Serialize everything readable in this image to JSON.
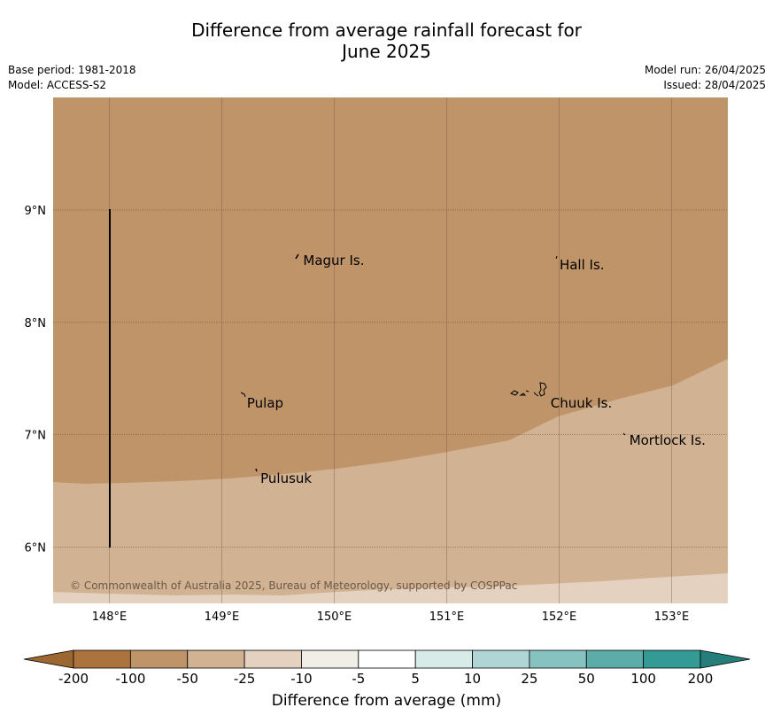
{
  "header": {
    "title_line1": "Difference from average rainfall forecast for",
    "title_line2": "June 2025",
    "base_period": "Base period: 1981-2018",
    "model": "Model: ACCESS-S2",
    "model_run": "Model run: 26/04/2025",
    "issued": "Issued: 28/04/2025"
  },
  "map": {
    "lon_range": [
      147.5,
      153.5
    ],
    "lat_range": [
      5.5,
      10.0
    ],
    "lon_ticks": [
      {
        "value": 148,
        "label": "148°E"
      },
      {
        "value": 149,
        "label": "149°E"
      },
      {
        "value": 150,
        "label": "150°E"
      },
      {
        "value": 151,
        "label": "151°E"
      },
      {
        "value": 152,
        "label": "152°E"
      },
      {
        "value": 153,
        "label": "153°E"
      }
    ],
    "lat_ticks": [
      {
        "value": 9,
        "label": "9°N"
      },
      {
        "value": 8,
        "label": "8°N"
      },
      {
        "value": 7,
        "label": "7°N"
      },
      {
        "value": 6,
        "label": "6°N"
      }
    ],
    "places": [
      {
        "name": "Magur Is.",
        "lon": 149.7,
        "lat": 8.55
      },
      {
        "name": "Hall Is.",
        "lon": 151.98,
        "lat": 8.51
      },
      {
        "name": "Pulap",
        "lon": 149.2,
        "lat": 7.28
      },
      {
        "name": "Chuuk Is.",
        "lon": 151.9,
        "lat": 7.28
      },
      {
        "name": "Mortlock Is.",
        "lon": 152.6,
        "lat": 6.95
      },
      {
        "name": "Pulusuk",
        "lon": 149.32,
        "lat": 6.61
      }
    ],
    "copyright": "© Commonwealth of Australia 2025, Bureau of Meteorology, supported by COSPPac",
    "zones": [
      {
        "range": "-100 to -50",
        "color": "#c09469"
      },
      {
        "range": "-50 to -25",
        "color": "#d1b292"
      },
      {
        "range": "-25 to -10",
        "color": "#e4d1bf"
      }
    ]
  },
  "colorbar": {
    "title": "Difference from average (mm)",
    "ticks": [
      "-200",
      "-100",
      "-50",
      "-25",
      "-10",
      "-5",
      "5",
      "10",
      "25",
      "50",
      "100",
      "200"
    ],
    "colors": [
      "#ad733d",
      "#c09469",
      "#d1b292",
      "#e4d1bf",
      "#f1ede7",
      "#ffffff",
      "#d7ebe9",
      "#afd6d4",
      "#86c2bf",
      "#5cadaa",
      "#339a96"
    ],
    "under_color": "#9d6732",
    "over_color": "#267e7a"
  }
}
